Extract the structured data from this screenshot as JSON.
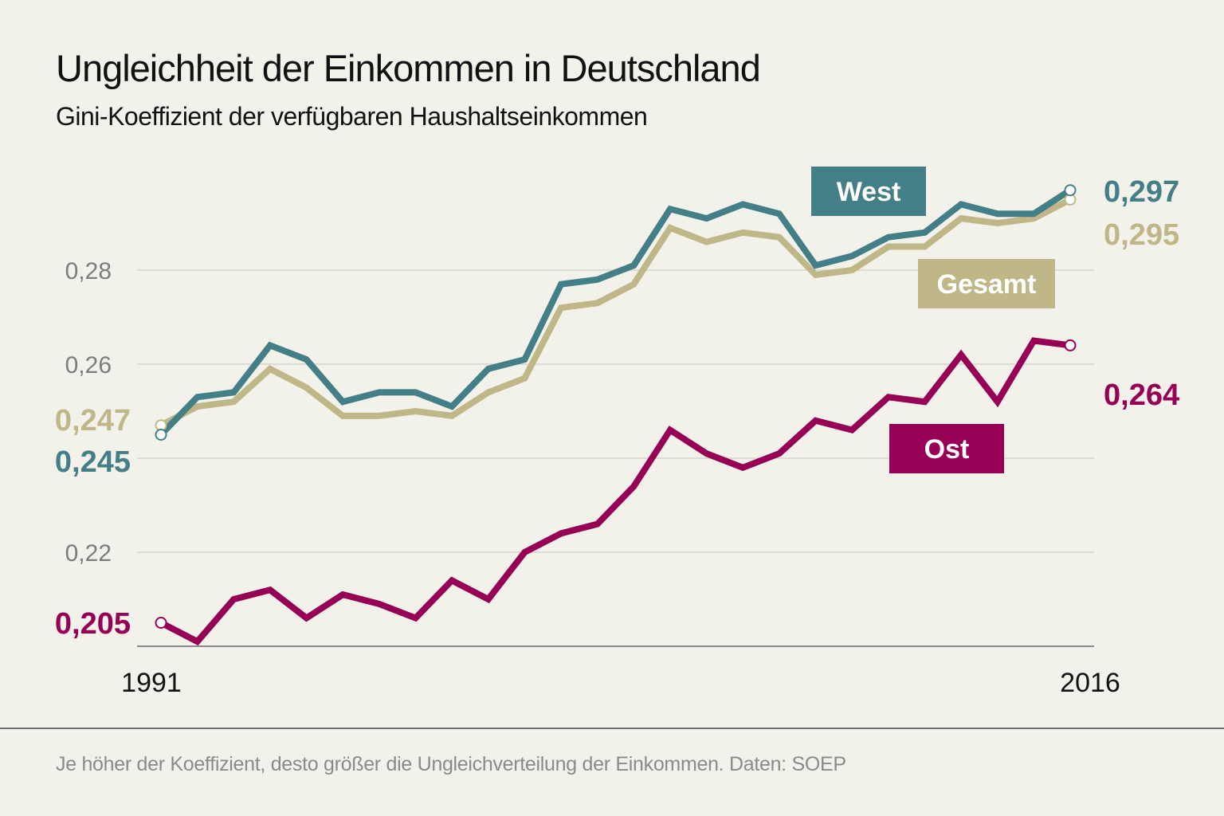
{
  "title": "Ungleichheit der Einkommen in Deutschland",
  "subtitle": "Gini-Koeffizient der verfügbaren Haushaltseinkommen",
  "footnote": "Je höher der Koeffizient, desto größer die Ungleichverteilung der Einkommen.  Daten: SOEP",
  "chart_data": {
    "type": "line",
    "title": "Ungleichheit der Einkommen in Deutschland",
    "subtitle": "Gini-Koeffizient der verfügbaren Haushaltseinkommen",
    "x": [
      1991,
      1992,
      1993,
      1994,
      1995,
      1996,
      1997,
      1998,
      1999,
      2000,
      2001,
      2002,
      2003,
      2004,
      2005,
      2006,
      2007,
      2008,
      2009,
      2010,
      2011,
      2012,
      2013,
      2014,
      2015,
      2016
    ],
    "x_tick_labels": [
      "1991",
      "2016"
    ],
    "y_ticks": [
      0.2,
      0.22,
      0.24,
      0.26,
      0.28
    ],
    "y_tick_labels": [
      "0,22",
      "0,26",
      "0,28"
    ],
    "ylim": [
      0.2,
      0.3
    ],
    "grid": true,
    "series": [
      {
        "name": "West",
        "color": "#437f86",
        "start_label": "0,245",
        "end_label": "0,297",
        "values": [
          0.245,
          0.253,
          0.254,
          0.264,
          0.261,
          0.252,
          0.254,
          0.254,
          0.251,
          0.259,
          0.261,
          0.277,
          0.278,
          0.281,
          0.293,
          0.291,
          0.294,
          0.292,
          0.281,
          0.283,
          0.287,
          0.288,
          0.294,
          0.292,
          0.292,
          0.297
        ]
      },
      {
        "name": "Gesamt",
        "color": "#bfb787",
        "start_label": "0,247",
        "end_label": "0,295",
        "values": [
          0.247,
          0.251,
          0.252,
          0.259,
          0.255,
          0.249,
          0.249,
          0.25,
          0.249,
          0.254,
          0.257,
          0.272,
          0.273,
          0.277,
          0.289,
          0.286,
          0.288,
          0.287,
          0.279,
          0.28,
          0.285,
          0.285,
          0.291,
          0.29,
          0.291,
          0.295
        ]
      },
      {
        "name": "Ost",
        "color": "#960055",
        "start_label": "0,205",
        "end_label": "0,264",
        "values": [
          0.205,
          0.201,
          0.21,
          0.212,
          0.206,
          0.211,
          0.209,
          0.206,
          0.214,
          0.21,
          0.22,
          0.224,
          0.226,
          0.234,
          0.246,
          0.241,
          0.238,
          0.241,
          0.248,
          0.246,
          0.253,
          0.252,
          0.262,
          0.252,
          0.265,
          0.264
        ]
      }
    ]
  }
}
